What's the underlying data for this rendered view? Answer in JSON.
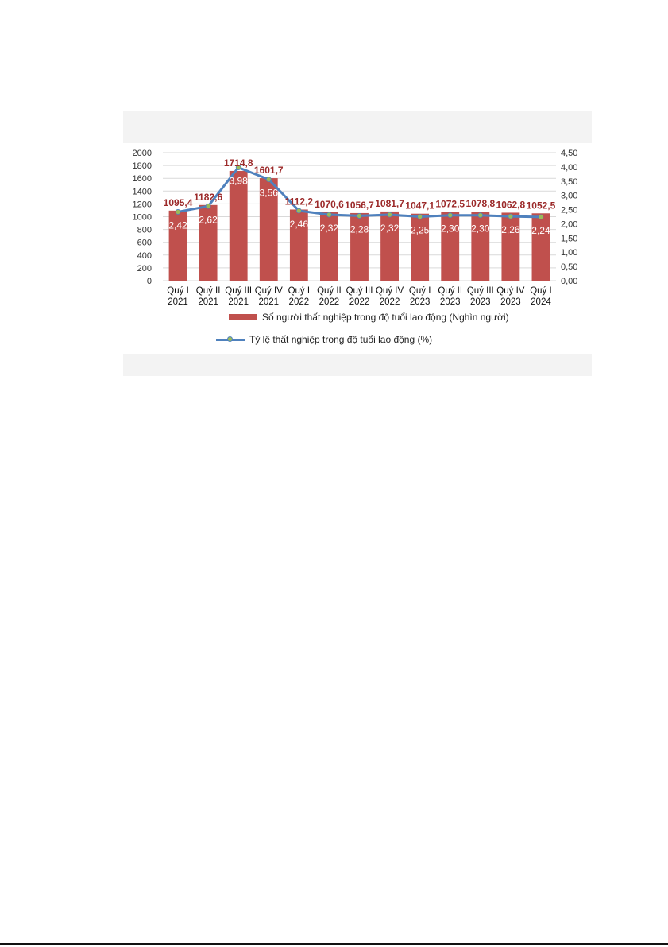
{
  "chart_data": {
    "type": "bar",
    "categories": [
      "Quý I 2021",
      "Quý II 2021",
      "Quý III 2021",
      "Quý IV 2021",
      "Quý I 2022",
      "Quý II 2022",
      "Quý III 2022",
      "Quý IV 2022",
      "Quý I 2023",
      "Quý II 2023",
      "Quý III 2023",
      "Quý IV 2023",
      "Quý I 2024"
    ],
    "category_lines": [
      [
        "Quý I",
        "2021"
      ],
      [
        "Quý II",
        "2021"
      ],
      [
        "Quý III",
        "2021"
      ],
      [
        "Quý IV",
        "2021"
      ],
      [
        "Quý I",
        "2022"
      ],
      [
        "Quý II",
        "2022"
      ],
      [
        "Quý III",
        "2022"
      ],
      [
        "Quý IV",
        "2022"
      ],
      [
        "Quý I",
        "2023"
      ],
      [
        "Quý II",
        "2023"
      ],
      [
        "Quý III",
        "2023"
      ],
      [
        "Quý IV",
        "2023"
      ],
      [
        "Quý I",
        "2024"
      ]
    ],
    "series": [
      {
        "name": "Số người thất nghiệp trong độ tuổi lao động (Nghìn người)",
        "type": "bar",
        "axis": "left",
        "color": "#c0504d",
        "values": [
          1095.4,
          1182.6,
          1714.8,
          1601.7,
          1112.2,
          1070.6,
          1056.7,
          1081.7,
          1047.1,
          1072.5,
          1078.8,
          1062.8,
          1052.5
        ],
        "labels": [
          "1095,4",
          "1182,6",
          "1714,8",
          "1601,7",
          "1112,2",
          "1070,6",
          "1056,7",
          "1081,7",
          "1047,1",
          "1072,5",
          "1078,8",
          "1062,8",
          "1052,5"
        ]
      },
      {
        "name": "Tỷ lệ thất nghiệp trong độ tuổi lao động (%)",
        "type": "line",
        "axis": "right",
        "color": "#4f81bd",
        "marker_color": "#9bbb59",
        "values": [
          2.42,
          2.62,
          3.98,
          3.56,
          2.46,
          2.32,
          2.28,
          2.32,
          2.25,
          2.3,
          2.3,
          2.26,
          2.24
        ],
        "labels": [
          "2,42",
          "2,62",
          "3,98",
          "3,56",
          "2,46",
          "2,32",
          "2,28",
          "2,32",
          "2,25",
          "2,30",
          "2,30",
          "2,26",
          "2,24"
        ]
      }
    ],
    "y_left": {
      "lim": [
        0,
        2000
      ],
      "ticks": [
        0,
        200,
        400,
        600,
        800,
        1000,
        1200,
        1400,
        1600,
        1800,
        2000
      ],
      "tick_labels": [
        "0",
        "200",
        "400",
        "600",
        "800",
        "1000",
        "1200",
        "1400",
        "1600",
        "1800",
        "2000"
      ]
    },
    "y_right": {
      "lim": [
        0,
        4.5
      ],
      "ticks": [
        0,
        0.5,
        1,
        1.5,
        2,
        2.5,
        3,
        3.5,
        4,
        4.5
      ],
      "tick_labels": [
        "0,00",
        "0,50",
        "1,00",
        "1,50",
        "2,00",
        "2,50",
        "3,00",
        "3,50",
        "4,00",
        "4,50"
      ]
    },
    "grid": true,
    "legend_position": "bottom",
    "colors": {
      "bar": "#c0504d",
      "bar_label": "#9c2a2a",
      "line": "#4f81bd",
      "marker": "#9bbb59",
      "grid": "#d9d9d9"
    }
  }
}
